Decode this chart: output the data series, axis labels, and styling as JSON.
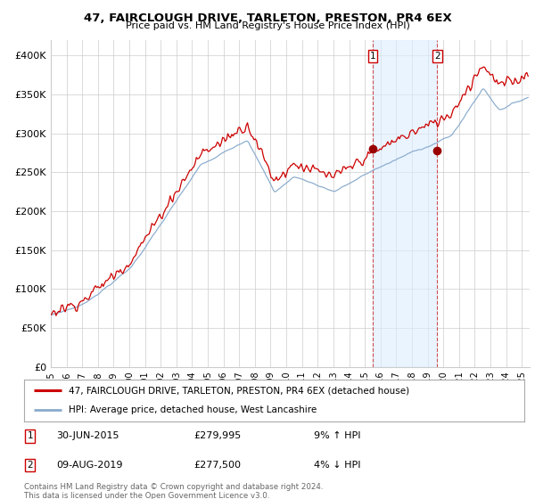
{
  "title": "47, FAIRCLOUGH DRIVE, TARLETON, PRESTON, PR4 6EX",
  "subtitle": "Price paid vs. HM Land Registry's House Price Index (HPI)",
  "sale1_date": "30-JUN-2015",
  "sale1_price": 279995,
  "sale1_pct": "9% ↑ HPI",
  "sale2_date": "09-AUG-2019",
  "sale2_price": 277500,
  "sale2_pct": "4% ↓ HPI",
  "legend_line1": "47, FAIRCLOUGH DRIVE, TARLETON, PRESTON, PR4 6EX (detached house)",
  "legend_line2": "HPI: Average price, detached house, West Lancashire",
  "footer": "Contains HM Land Registry data © Crown copyright and database right 2024.\nThis data is licensed under the Open Government Licence v3.0.",
  "line1_color": "#cc0000",
  "line2_color": "#88aacc",
  "shade_color": "#ddeeff",
  "background_color": "#ffffff",
  "grid_color": "#cccccc",
  "sale_marker_color": "#990000",
  "ylim": [
    0,
    420000
  ],
  "yticks": [
    0,
    50000,
    100000,
    150000,
    200000,
    250000,
    300000,
    350000,
    400000
  ],
  "ytick_labels": [
    "£0",
    "£50K",
    "£100K",
    "£150K",
    "£200K",
    "£250K",
    "£300K",
    "£350K",
    "£400K"
  ],
  "sale1_year": 2015.5,
  "sale2_year": 2019.62
}
